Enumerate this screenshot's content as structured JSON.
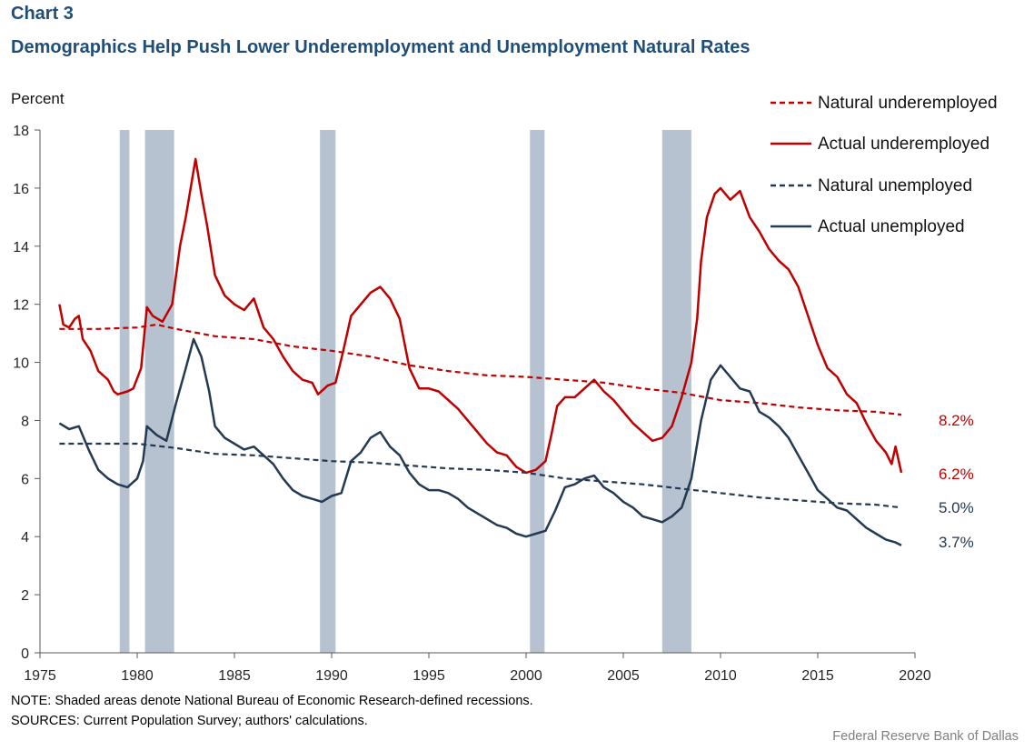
{
  "header": {
    "chart_number": "Chart 3",
    "title": "Demographics Help Push Lower Underemployment  and Unemployment  Natural Rates"
  },
  "footer": {
    "note": "NOTE: Shaded areas denote National Bureau of Economic Research-defined recessions.",
    "sources": "SOURCES: Current Population Survey; authors' calculations.",
    "credit": "Federal Reserve  Bank of Dallas"
  },
  "colors": {
    "underemployed": "#c00000",
    "unemployed": "#243a52",
    "recession": "#b6c2d0",
    "title": "#1f4e79"
  },
  "chart_data": {
    "type": "line",
    "ylabel": "Percent",
    "xlabel": "",
    "xlim": [
      1975,
      2020
    ],
    "ylim": [
      0,
      18
    ],
    "x_ticks": [
      1975,
      1980,
      1985,
      1990,
      1995,
      2000,
      2005,
      2010,
      2015,
      2020
    ],
    "y_ticks": [
      0,
      2,
      4,
      6,
      8,
      10,
      12,
      14,
      16,
      18
    ],
    "grid": false,
    "legend_position": "top-right",
    "recessions": [
      [
        1979.1,
        1979.6
      ],
      [
        1980.4,
        1981.9
      ],
      [
        1989.4,
        1990.2
      ],
      [
        2000.2,
        2000.95
      ],
      [
        2007.0,
        2008.5
      ]
    ],
    "series": [
      {
        "name": "Natural underemployed",
        "style": "dashed",
        "color": "#c00000",
        "end_label": "8.2%",
        "points": [
          [
            1976.0,
            11.15
          ],
          [
            1978.0,
            11.15
          ],
          [
            1980.0,
            11.2
          ],
          [
            1981.0,
            11.3
          ],
          [
            1982.0,
            11.15
          ],
          [
            1984.0,
            10.9
          ],
          [
            1986.0,
            10.8
          ],
          [
            1988.0,
            10.55
          ],
          [
            1990.0,
            10.4
          ],
          [
            1992.0,
            10.2
          ],
          [
            1994.0,
            9.9
          ],
          [
            1996.0,
            9.7
          ],
          [
            1998.0,
            9.55
          ],
          [
            2000.0,
            9.5
          ],
          [
            2002.0,
            9.4
          ],
          [
            2004.0,
            9.3
          ],
          [
            2006.0,
            9.1
          ],
          [
            2008.0,
            8.95
          ],
          [
            2010.0,
            8.7
          ],
          [
            2012.0,
            8.6
          ],
          [
            2014.0,
            8.45
          ],
          [
            2016.0,
            8.35
          ],
          [
            2018.0,
            8.3
          ],
          [
            2019.3,
            8.2
          ]
        ]
      },
      {
        "name": "Actual underemployed",
        "style": "solid",
        "color": "#c00000",
        "end_label": "6.2%",
        "points": [
          [
            1976.0,
            12.0
          ],
          [
            1976.2,
            11.3
          ],
          [
            1976.5,
            11.2
          ],
          [
            1976.8,
            11.5
          ],
          [
            1977.0,
            11.6
          ],
          [
            1977.2,
            10.8
          ],
          [
            1977.6,
            10.4
          ],
          [
            1978.0,
            9.7
          ],
          [
            1978.5,
            9.4
          ],
          [
            1978.8,
            9.0
          ],
          [
            1979.0,
            8.9
          ],
          [
            1979.5,
            9.0
          ],
          [
            1979.8,
            9.1
          ],
          [
            1980.2,
            9.8
          ],
          [
            1980.5,
            11.9
          ],
          [
            1980.8,
            11.6
          ],
          [
            1981.3,
            11.4
          ],
          [
            1981.8,
            12.0
          ],
          [
            1982.2,
            14.0
          ],
          [
            1982.5,
            15.0
          ],
          [
            1982.8,
            16.2
          ],
          [
            1983.0,
            17.0
          ],
          [
            1983.3,
            15.8
          ],
          [
            1983.6,
            14.7
          ],
          [
            1984.0,
            13.0
          ],
          [
            1984.5,
            12.3
          ],
          [
            1985.0,
            12.0
          ],
          [
            1985.5,
            11.8
          ],
          [
            1986.0,
            12.2
          ],
          [
            1986.5,
            11.2
          ],
          [
            1987.0,
            10.8
          ],
          [
            1987.5,
            10.2
          ],
          [
            1988.0,
            9.7
          ],
          [
            1988.5,
            9.4
          ],
          [
            1989.0,
            9.3
          ],
          [
            1989.3,
            8.9
          ],
          [
            1989.8,
            9.2
          ],
          [
            1990.2,
            9.3
          ],
          [
            1990.6,
            10.4
          ],
          [
            1991.0,
            11.6
          ],
          [
            1991.5,
            12.0
          ],
          [
            1992.0,
            12.4
          ],
          [
            1992.5,
            12.6
          ],
          [
            1993.0,
            12.2
          ],
          [
            1993.5,
            11.5
          ],
          [
            1994.0,
            9.8
          ],
          [
            1994.5,
            9.1
          ],
          [
            1995.0,
            9.1
          ],
          [
            1995.5,
            9.0
          ],
          [
            1996.0,
            8.7
          ],
          [
            1996.5,
            8.4
          ],
          [
            1997.0,
            8.0
          ],
          [
            1997.5,
            7.6
          ],
          [
            1998.0,
            7.2
          ],
          [
            1998.5,
            6.9
          ],
          [
            1999.0,
            6.8
          ],
          [
            1999.5,
            6.4
          ],
          [
            2000.0,
            6.2
          ],
          [
            2000.5,
            6.3
          ],
          [
            2001.0,
            6.6
          ],
          [
            2001.3,
            7.5
          ],
          [
            2001.6,
            8.5
          ],
          [
            2002.0,
            8.8
          ],
          [
            2002.5,
            8.8
          ],
          [
            2003.0,
            9.1
          ],
          [
            2003.5,
            9.4
          ],
          [
            2004.0,
            9.0
          ],
          [
            2004.5,
            8.7
          ],
          [
            2005.0,
            8.3
          ],
          [
            2005.5,
            7.9
          ],
          [
            2006.0,
            7.6
          ],
          [
            2006.5,
            7.3
          ],
          [
            2007.0,
            7.4
          ],
          [
            2007.5,
            7.8
          ],
          [
            2008.0,
            8.8
          ],
          [
            2008.5,
            10.0
          ],
          [
            2008.8,
            11.5
          ],
          [
            2009.0,
            13.5
          ],
          [
            2009.3,
            15.0
          ],
          [
            2009.7,
            15.8
          ],
          [
            2010.0,
            16.0
          ],
          [
            2010.5,
            15.6
          ],
          [
            2011.0,
            15.9
          ],
          [
            2011.5,
            15.0
          ],
          [
            2012.0,
            14.5
          ],
          [
            2012.5,
            13.9
          ],
          [
            2013.0,
            13.5
          ],
          [
            2013.5,
            13.2
          ],
          [
            2014.0,
            12.6
          ],
          [
            2014.5,
            11.6
          ],
          [
            2015.0,
            10.6
          ],
          [
            2015.5,
            9.8
          ],
          [
            2016.0,
            9.5
          ],
          [
            2016.5,
            8.9
          ],
          [
            2017.0,
            8.6
          ],
          [
            2017.5,
            7.9
          ],
          [
            2018.0,
            7.3
          ],
          [
            2018.5,
            6.9
          ],
          [
            2018.8,
            6.5
          ],
          [
            2019.0,
            7.1
          ],
          [
            2019.3,
            6.2
          ]
        ]
      },
      {
        "name": "Natural unemployed",
        "style": "dashed",
        "color": "#243a52",
        "end_label": "5.0%",
        "points": [
          [
            1976.0,
            7.2
          ],
          [
            1978.0,
            7.2
          ],
          [
            1980.0,
            7.2
          ],
          [
            1982.0,
            7.05
          ],
          [
            1984.0,
            6.85
          ],
          [
            1986.0,
            6.8
          ],
          [
            1988.0,
            6.7
          ],
          [
            1990.0,
            6.6
          ],
          [
            1992.0,
            6.55
          ],
          [
            1994.0,
            6.45
          ],
          [
            1996.0,
            6.35
          ],
          [
            1998.0,
            6.3
          ],
          [
            2000.0,
            6.2
          ],
          [
            2002.0,
            6.0
          ],
          [
            2004.0,
            5.9
          ],
          [
            2006.0,
            5.8
          ],
          [
            2008.0,
            5.65
          ],
          [
            2010.0,
            5.5
          ],
          [
            2012.0,
            5.35
          ],
          [
            2014.0,
            5.25
          ],
          [
            2016.0,
            5.15
          ],
          [
            2018.0,
            5.1
          ],
          [
            2019.3,
            5.0
          ]
        ]
      },
      {
        "name": "Actual unemployed",
        "style": "solid",
        "color": "#243a52",
        "end_label": "3.7%",
        "points": [
          [
            1976.0,
            7.9
          ],
          [
            1976.5,
            7.7
          ],
          [
            1977.0,
            7.8
          ],
          [
            1977.5,
            7.0
          ],
          [
            1978.0,
            6.3
          ],
          [
            1978.5,
            6.0
          ],
          [
            1979.0,
            5.8
          ],
          [
            1979.5,
            5.7
          ],
          [
            1980.0,
            6.0
          ],
          [
            1980.3,
            6.6
          ],
          [
            1980.5,
            7.8
          ],
          [
            1981.0,
            7.5
          ],
          [
            1981.5,
            7.3
          ],
          [
            1982.0,
            8.6
          ],
          [
            1982.5,
            9.8
          ],
          [
            1982.9,
            10.8
          ],
          [
            1983.3,
            10.2
          ],
          [
            1983.7,
            9.0
          ],
          [
            1984.0,
            7.8
          ],
          [
            1984.5,
            7.4
          ],
          [
            1985.0,
            7.2
          ],
          [
            1985.5,
            7.0
          ],
          [
            1986.0,
            7.1
          ],
          [
            1986.5,
            6.8
          ],
          [
            1987.0,
            6.5
          ],
          [
            1987.5,
            6.0
          ],
          [
            1988.0,
            5.6
          ],
          [
            1988.5,
            5.4
          ],
          [
            1989.0,
            5.3
          ],
          [
            1989.5,
            5.2
          ],
          [
            1990.0,
            5.4
          ],
          [
            1990.5,
            5.5
          ],
          [
            1991.0,
            6.6
          ],
          [
            1991.5,
            6.9
          ],
          [
            1992.0,
            7.4
          ],
          [
            1992.5,
            7.6
          ],
          [
            1993.0,
            7.1
          ],
          [
            1993.5,
            6.8
          ],
          [
            1994.0,
            6.2
          ],
          [
            1994.5,
            5.8
          ],
          [
            1995.0,
            5.6
          ],
          [
            1995.5,
            5.6
          ],
          [
            1996.0,
            5.5
          ],
          [
            1996.5,
            5.3
          ],
          [
            1997.0,
            5.0
          ],
          [
            1997.5,
            4.8
          ],
          [
            1998.0,
            4.6
          ],
          [
            1998.5,
            4.4
          ],
          [
            1999.0,
            4.3
          ],
          [
            1999.5,
            4.1
          ],
          [
            2000.0,
            4.0
          ],
          [
            2000.5,
            4.1
          ],
          [
            2001.0,
            4.2
          ],
          [
            2001.5,
            4.9
          ],
          [
            2002.0,
            5.7
          ],
          [
            2002.5,
            5.8
          ],
          [
            2003.0,
            6.0
          ],
          [
            2003.5,
            6.1
          ],
          [
            2004.0,
            5.7
          ],
          [
            2004.5,
            5.5
          ],
          [
            2005.0,
            5.2
          ],
          [
            2005.5,
            5.0
          ],
          [
            2006.0,
            4.7
          ],
          [
            2006.5,
            4.6
          ],
          [
            2007.0,
            4.5
          ],
          [
            2007.5,
            4.7
          ],
          [
            2008.0,
            5.0
          ],
          [
            2008.5,
            6.0
          ],
          [
            2009.0,
            8.0
          ],
          [
            2009.5,
            9.4
          ],
          [
            2010.0,
            9.9
          ],
          [
            2010.5,
            9.5
          ],
          [
            2011.0,
            9.1
          ],
          [
            2011.5,
            9.0
          ],
          [
            2012.0,
            8.3
          ],
          [
            2012.5,
            8.1
          ],
          [
            2013.0,
            7.8
          ],
          [
            2013.5,
            7.4
          ],
          [
            2014.0,
            6.8
          ],
          [
            2014.5,
            6.2
          ],
          [
            2015.0,
            5.6
          ],
          [
            2015.5,
            5.3
          ],
          [
            2016.0,
            5.0
          ],
          [
            2016.5,
            4.9
          ],
          [
            2017.0,
            4.6
          ],
          [
            2017.5,
            4.3
          ],
          [
            2018.0,
            4.1
          ],
          [
            2018.5,
            3.9
          ],
          [
            2019.0,
            3.8
          ],
          [
            2019.3,
            3.7
          ]
        ]
      }
    ]
  }
}
